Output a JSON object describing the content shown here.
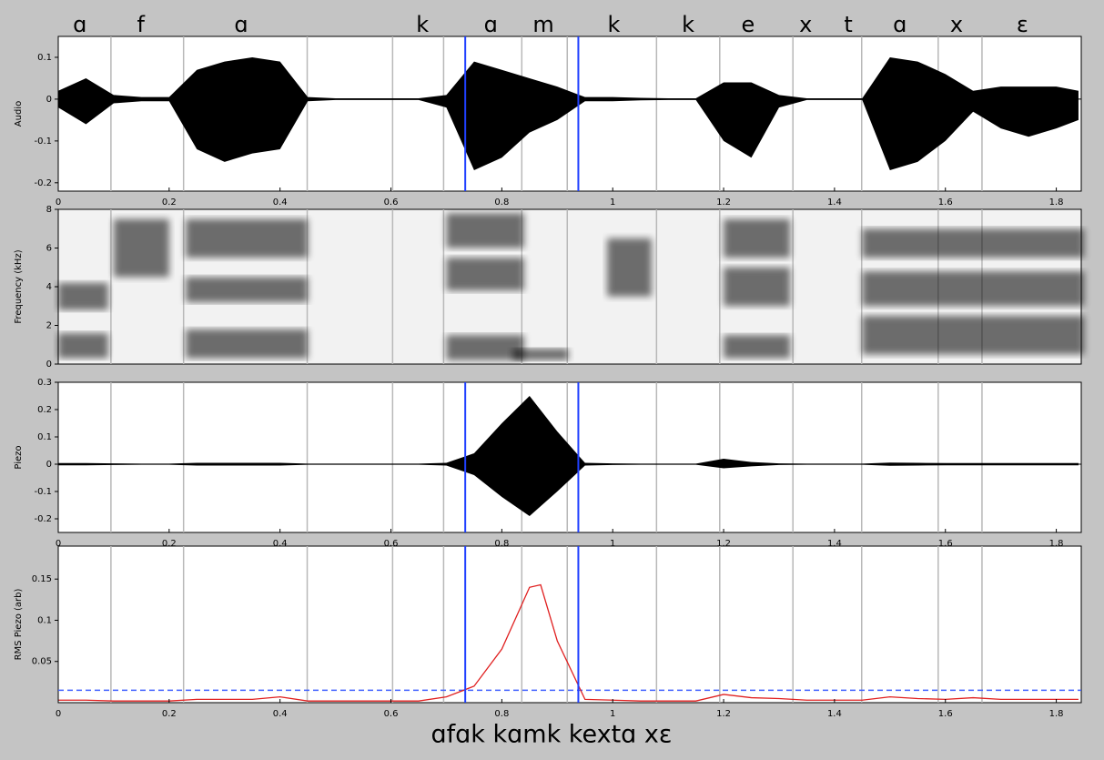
{
  "segments": {
    "label_times": [
      0.039,
      0.149,
      0.33,
      0.657,
      0.78,
      0.875,
      1.002,
      1.136,
      1.244,
      1.348,
      1.425,
      1.518,
      1.62,
      1.739
    ],
    "labels": [
      "ɑ",
      "f",
      "ɑ",
      "k",
      "ɑ",
      "m",
      "k",
      "k",
      "e",
      "x",
      "t",
      "ɑ",
      "x",
      "ɛ"
    ],
    "boundaries": [
      0.095,
      0.226,
      0.449,
      0.603,
      0.695,
      0.836,
      0.918,
      1.079,
      1.193,
      1.325,
      1.449,
      1.587,
      1.666
    ],
    "markers": [
      0.734,
      0.938
    ]
  },
  "caption": "ɑfɑk kɑmk kextɑ xɛ",
  "time_axis": {
    "xlim": [
      0,
      1.845
    ],
    "xticks": [
      0,
      0.2,
      0.4,
      0.6,
      0.8,
      1,
      1.2,
      1.4,
      1.6,
      1.8
    ]
  },
  "chart_data": [
    {
      "type": "envelope",
      "ylabel": "Audio",
      "ylim": [
        -0.22,
        0.15
      ],
      "yticks": [
        -0.2,
        -0.1,
        0,
        0.1
      ],
      "xtick_labels": true,
      "markers": true,
      "color": "#000000",
      "x": [
        0,
        0.05,
        0.1,
        0.15,
        0.2,
        0.25,
        0.3,
        0.35,
        0.4,
        0.45,
        0.5,
        0.55,
        0.6,
        0.65,
        0.7,
        0.75,
        0.8,
        0.85,
        0.9,
        0.95,
        1.0,
        1.05,
        1.1,
        1.15,
        1.2,
        1.25,
        1.3,
        1.35,
        1.4,
        1.45,
        1.5,
        1.55,
        1.6,
        1.65,
        1.7,
        1.75,
        1.8,
        1.84
      ],
      "upper": [
        0.02,
        0.05,
        0.01,
        0.005,
        0.005,
        0.07,
        0.09,
        0.1,
        0.09,
        0.005,
        0.002,
        0.002,
        0.002,
        0.002,
        0.01,
        0.09,
        0.07,
        0.05,
        0.03,
        0.005,
        0.005,
        0.003,
        0.002,
        0.002,
        0.04,
        0.04,
        0.01,
        0.002,
        0.002,
        0.002,
        0.1,
        0.09,
        0.06,
        0.02,
        0.03,
        0.03,
        0.03,
        0.02
      ],
      "lower": [
        -0.02,
        -0.06,
        -0.01,
        -0.005,
        -0.005,
        -0.12,
        -0.15,
        -0.13,
        -0.12,
        -0.005,
        -0.002,
        -0.002,
        -0.002,
        -0.002,
        -0.02,
        -0.17,
        -0.14,
        -0.08,
        -0.05,
        -0.005,
        -0.005,
        -0.003,
        -0.002,
        -0.002,
        -0.1,
        -0.14,
        -0.02,
        -0.002,
        -0.002,
        -0.002,
        -0.17,
        -0.15,
        -0.1,
        -0.03,
        -0.07,
        -0.09,
        -0.07,
        -0.05
      ]
    },
    {
      "type": "spectrogram",
      "ylabel": "Frequency (kHz)",
      "ylim": [
        0,
        8
      ],
      "yticks": [
        0,
        2,
        4,
        6,
        8
      ],
      "xtick_labels": false,
      "markers": false,
      "color": "#000000",
      "bands": [
        [
          0,
          0.09,
          0.3,
          1.6
        ],
        [
          0,
          0.09,
          2.8,
          4.2
        ],
        [
          0.1,
          0.2,
          4.5,
          7.5
        ],
        [
          0.23,
          0.45,
          0.3,
          1.8
        ],
        [
          0.23,
          0.45,
          3.2,
          4.5
        ],
        [
          0.23,
          0.45,
          5.5,
          7.5
        ],
        [
          0.7,
          0.84,
          0.2,
          1.5
        ],
        [
          0.7,
          0.84,
          3.8,
          5.5
        ],
        [
          0.7,
          0.84,
          6,
          7.8
        ],
        [
          0.82,
          0.92,
          0.2,
          0.8
        ],
        [
          0.99,
          1.07,
          3.5,
          6.5
        ],
        [
          1.2,
          1.32,
          0.3,
          1.5
        ],
        [
          1.2,
          1.32,
          3,
          5
        ],
        [
          1.2,
          1.32,
          5.5,
          7.5
        ],
        [
          1.45,
          1.85,
          0.5,
          2.5
        ],
        [
          1.45,
          1.85,
          3,
          4.8
        ],
        [
          1.45,
          1.85,
          5.5,
          7
        ]
      ]
    },
    {
      "type": "envelope",
      "ylabel": "Piezo",
      "ylim": [
        -0.25,
        0.3
      ],
      "yticks": [
        -0.2,
        -0.1,
        0,
        0.1,
        0.2,
        0.3
      ],
      "xtick_labels": true,
      "markers": true,
      "color": "#000000",
      "x": [
        0,
        0.05,
        0.1,
        0.15,
        0.2,
        0.25,
        0.3,
        0.35,
        0.4,
        0.45,
        0.5,
        0.55,
        0.6,
        0.65,
        0.7,
        0.75,
        0.8,
        0.85,
        0.9,
        0.95,
        1.0,
        1.05,
        1.1,
        1.15,
        1.2,
        1.25,
        1.3,
        1.35,
        1.4,
        1.45,
        1.5,
        1.55,
        1.6,
        1.65,
        1.7,
        1.75,
        1.8,
        1.84
      ],
      "upper": [
        0.004,
        0.004,
        0.003,
        0.002,
        0.002,
        0.005,
        0.005,
        0.005,
        0.005,
        0.002,
        0.002,
        0.002,
        0.002,
        0.002,
        0.005,
        0.04,
        0.15,
        0.25,
        0.12,
        0.005,
        0.003,
        0.002,
        0.002,
        0.002,
        0.02,
        0.008,
        0.003,
        0.002,
        0.002,
        0.002,
        0.006,
        0.005,
        0.004,
        0.004,
        0.004,
        0.004,
        0.004,
        0.004
      ],
      "lower": [
        -0.004,
        -0.004,
        -0.003,
        -0.002,
        -0.002,
        -0.005,
        -0.005,
        -0.005,
        -0.005,
        -0.002,
        -0.002,
        -0.002,
        -0.002,
        -0.002,
        -0.005,
        -0.04,
        -0.12,
        -0.19,
        -0.1,
        -0.005,
        -0.003,
        -0.002,
        -0.002,
        -0.002,
        -0.015,
        -0.008,
        -0.003,
        -0.002,
        -0.002,
        -0.002,
        -0.006,
        -0.005,
        -0.004,
        -0.004,
        -0.004,
        -0.004,
        -0.004,
        -0.004
      ]
    },
    {
      "type": "line",
      "ylabel": "RMS Piezo (arb)",
      "ylim": [
        0,
        0.19
      ],
      "yticks": [
        0.05,
        0.1,
        0.15
      ],
      "xtick_labels": true,
      "markers": true,
      "color": "#e02020",
      "threshold": 0.015,
      "threshold_color": "#4060ff",
      "x": [
        0,
        0.05,
        0.1,
        0.15,
        0.2,
        0.25,
        0.3,
        0.35,
        0.4,
        0.45,
        0.5,
        0.55,
        0.6,
        0.65,
        0.7,
        0.75,
        0.8,
        0.85,
        0.87,
        0.9,
        0.95,
        1.0,
        1.05,
        1.1,
        1.15,
        1.2,
        1.25,
        1.3,
        1.35,
        1.4,
        1.45,
        1.5,
        1.55,
        1.6,
        1.65,
        1.7,
        1.75,
        1.8,
        1.84
      ],
      "values": [
        0.003,
        0.003,
        0.002,
        0.002,
        0.002,
        0.004,
        0.004,
        0.004,
        0.007,
        0.002,
        0.002,
        0.002,
        0.002,
        0.002,
        0.007,
        0.02,
        0.065,
        0.14,
        0.143,
        0.075,
        0.004,
        0.003,
        0.002,
        0.002,
        0.002,
        0.01,
        0.006,
        0.005,
        0.003,
        0.003,
        0.003,
        0.007,
        0.005,
        0.004,
        0.006,
        0.004,
        0.004,
        0.004,
        0.004
      ]
    }
  ]
}
